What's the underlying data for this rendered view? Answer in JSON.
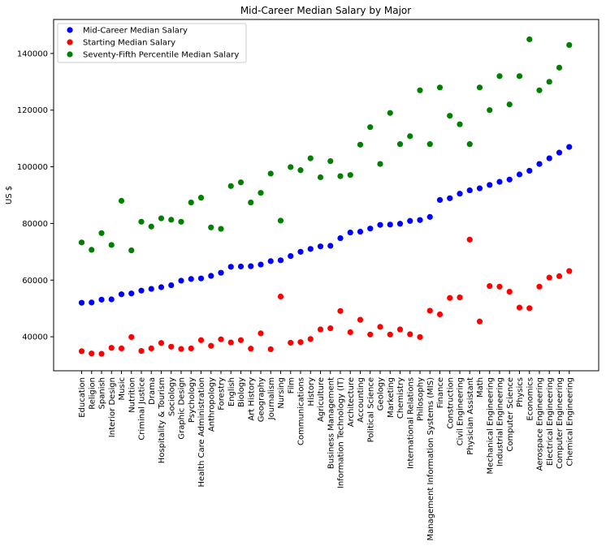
{
  "chart_data": {
    "type": "scatter",
    "title": "Mid-Career Median Salary by Major",
    "xlabel": "",
    "ylabel": "US $",
    "ylim": [
      28000,
      152000
    ],
    "yticks": [
      40000,
      60000,
      80000,
      100000,
      120000,
      140000
    ],
    "ytick_labels": [
      "40000",
      "60000",
      "80000",
      "100000",
      "120000",
      "140000"
    ],
    "grid": false,
    "legend_position": "top-left",
    "categories": [
      "Education",
      "Religion",
      "Spanish",
      "Interior Design",
      "Music",
      "Nutrition",
      "Criminal Justice",
      "Drama",
      "Hospitality & Tourism",
      "Sociology",
      "Graphic Design",
      "Psychology",
      "Health Care Administration",
      "Anthropology",
      "Forestry",
      "English",
      "Biology",
      "Art History",
      "Geography",
      "Journalism",
      "Nursing",
      "Film",
      "Communications",
      "History",
      "Agriculture",
      "Business Management",
      "Information Technology (IT)",
      "Architecture",
      "Accounting",
      "Political Science",
      "Geology",
      "Marketing",
      "Chemistry",
      "International Relations",
      "Philosophy",
      "Management Information Systems (MIS)",
      "Finance",
      "Construction",
      "Civil Engineering",
      "Physician Assistant",
      "Math",
      "Mechanical Engineering",
      "Industrial Engineering",
      "Computer Science",
      "Physics",
      "Economics",
      "Aerospace Engineering",
      "Electrical Engineering",
      "Computer Engineering",
      "Chemical Engineering"
    ],
    "series": [
      {
        "name": "Mid-Career Median Salary",
        "color": "#0000ff",
        "values": [
          52000,
          52100,
          53100,
          53200,
          55000,
          55300,
          56300,
          56900,
          57500,
          58200,
          59800,
          60400,
          60600,
          61500,
          62600,
          64700,
          64800,
          64900,
          65500,
          66700,
          67000,
          68500,
          70000,
          71000,
          71900,
          72100,
          74800,
          76800,
          77100,
          78200,
          79500,
          79600,
          79900,
          80900,
          81200,
          82300,
          88300,
          88900,
          90500,
          91700,
          92400,
          93600,
          94700,
          95500,
          97300,
          98600,
          101000,
          103000,
          105000,
          107000
        ]
      },
      {
        "name": "Starting Median Salary",
        "color": "#ff0000",
        "values": [
          34900,
          34100,
          34000,
          36100,
          35900,
          39900,
          35000,
          35900,
          37800,
          36500,
          35700,
          35900,
          38800,
          36800,
          39100,
          38000,
          38800,
          35800,
          41200,
          35600,
          54200,
          37900,
          38100,
          39200,
          42600,
          43000,
          49100,
          41600,
          46000,
          40800,
          43500,
          40800,
          42600,
          40900,
          39900,
          49200,
          47900,
          53700,
          53900,
          74300,
          45400,
          57900,
          57700,
          55900,
          50300,
          50100,
          57700,
          60900,
          61400,
          63200
        ]
      },
      {
        "name": "Seventy-Fifth Percentile Median Salary",
        "color": "#008000",
        "values": [
          73300,
          70700,
          76600,
          72400,
          88000,
          70500,
          80600,
          78900,
          81800,
          81300,
          80600,
          87400,
          89100,
          78600,
          78100,
          93200,
          94500,
          87400,
          90800,
          97600,
          81000,
          99900,
          98800,
          103000,
          96300,
          102000,
          96700,
          97100,
          107800,
          114000,
          101000,
          119000,
          108000,
          110800,
          127000,
          108000,
          128000,
          118000,
          115000,
          108000,
          128000,
          120000,
          132000,
          122000,
          132000,
          145000,
          127000,
          130000,
          135000,
          143000
        ]
      }
    ]
  }
}
